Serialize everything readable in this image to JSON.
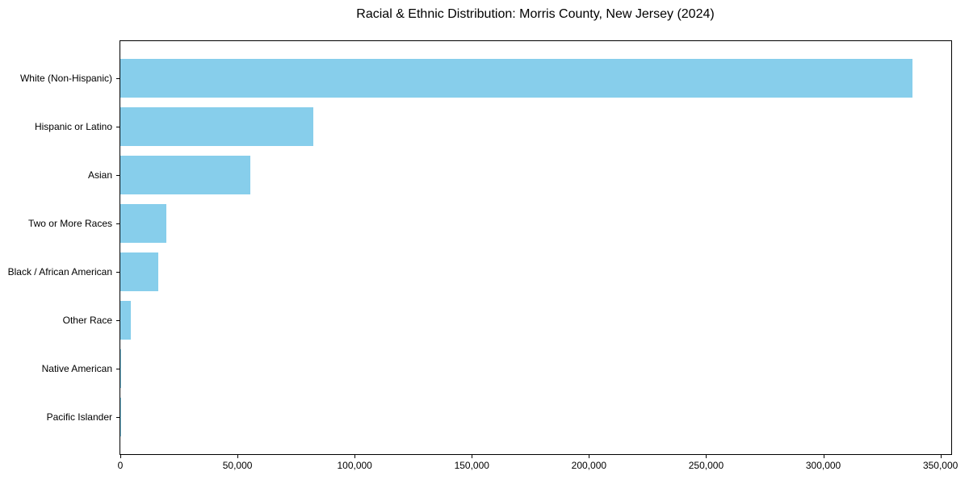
{
  "figure": {
    "background_color": "#ffffff"
  },
  "chart_data": {
    "type": "bar",
    "orientation": "horizontal",
    "title": "Racial & Ethnic Distribution: Morris County, New Jersey (2024)",
    "xlabel": "",
    "ylabel": "",
    "categories": [
      "White (Non-Hispanic)",
      "Hispanic or Latino",
      "Asian",
      "Two or More Races",
      "Black / African American",
      "Other Race",
      "Native American",
      "Pacific Islander"
    ],
    "values": [
      338000,
      82300,
      55400,
      19500,
      16100,
      4600,
      300,
      100
    ],
    "xlim": [
      0,
      354600
    ],
    "xticks": [
      0,
      50000,
      100000,
      150000,
      200000,
      250000,
      300000,
      350000
    ],
    "xtick_labels": [
      "0",
      "50,000",
      "100,000",
      "150,000",
      "200,000",
      "250,000",
      "300,000",
      "350,000"
    ],
    "bar_color": "#87CEEB",
    "frame_color": "#000000",
    "text_color": "#000000",
    "grid": false,
    "legend": null
  }
}
